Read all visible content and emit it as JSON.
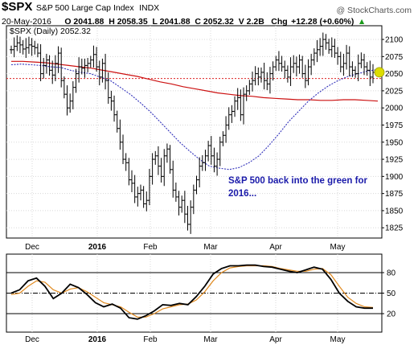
{
  "header": {
    "symbol": "$SPX",
    "name": "S&P 500 Large Cap Index",
    "exchange": "INDX",
    "date": "20-May-2016",
    "ohlc": "O 2041.88  H 2058.35  L 2041.88  C 2052.32  V 2.2B",
    "change_label": "Chg",
    "change": "+12.28 (+0.60%)",
    "change_arrow": "▲",
    "watermark": "@ StockCharts.com"
  },
  "chart_data": [
    {
      "type": "ohlc",
      "legend": "$SPX (Daily) 2052.32",
      "ylim": [
        1810,
        2120
      ],
      "yticks": [
        1825,
        1850,
        1875,
        1900,
        1925,
        1950,
        1975,
        2000,
        2025,
        2050,
        2075,
        2100
      ],
      "xticks": [
        "Dec",
        "2016",
        "Feb",
        "Mar",
        "Apr",
        "May"
      ],
      "annotation": [
        "S&P 500 back into the green for",
        "2016..."
      ],
      "reference_level": 2043,
      "colors": {
        "bars": "#000000",
        "ma50": "#3333bb",
        "ma200": "#cc1111",
        "reference": "#dd2222",
        "marker": "#dddd00"
      },
      "close": [
        2085,
        2090,
        2095,
        2092,
        2086,
        2088,
        2092,
        2090,
        2088,
        2080,
        2050,
        2062,
        2070,
        2055,
        2048,
        2065,
        2080,
        2040,
        2020,
        2000,
        2010,
        2030,
        2050,
        2060,
        2058,
        2062,
        2065,
        2070,
        2078,
        2060,
        2045,
        2065,
        2040,
        2015,
        2010,
        1990,
        1970,
        1950,
        1925,
        1920,
        1895,
        1890,
        1870,
        1875,
        1880,
        1860,
        1865,
        1900,
        1925,
        1930,
        1915,
        1900,
        1930,
        1940,
        1910,
        1880,
        1870,
        1855,
        1865,
        1845,
        1830,
        1855,
        1880,
        1895,
        1915,
        1920,
        1930,
        1945,
        1930,
        1915,
        1925,
        1950,
        1960,
        1975,
        1990,
        1995,
        2010,
        2015,
        1990,
        2020,
        2025,
        2035,
        2040,
        2050,
        2045,
        2052,
        2040,
        2035,
        2050,
        2060,
        2070,
        2065,
        2060,
        2055,
        2045,
        2060,
        2065,
        2060,
        2070,
        2050,
        2040,
        2060,
        2070,
        2080,
        2085,
        2090,
        2100,
        2095,
        2085,
        2090,
        2080,
        2075,
        2060,
        2065,
        2080,
        2060,
        2055,
        2050,
        2065,
        2070,
        2060,
        2055,
        2045,
        2052
      ],
      "ma50": [
        2063,
        2064,
        2063,
        2062,
        2060,
        2059,
        2055,
        2052,
        2050,
        2045,
        2040,
        2030,
        2020,
        2008,
        1995,
        1980,
        1965,
        1950,
        1937,
        1925,
        1915,
        1912,
        1910,
        1913,
        1920,
        1930,
        1945,
        1962,
        1980,
        1995,
        2010,
        2022,
        2032,
        2040,
        2046,
        2050,
        2054,
        2056
      ],
      "ma200": [
        2068,
        2068,
        2067,
        2066,
        2064,
        2062,
        2060,
        2058,
        2055,
        2052,
        2049,
        2046,
        2042,
        2038,
        2035,
        2031,
        2028,
        2025,
        2022,
        2020,
        2018,
        2017,
        2015,
        2014,
        2013,
        2012,
        2012,
        2011,
        2011,
        2012,
        2012,
        2011,
        2010
      ]
    },
    {
      "type": "line",
      "ylim": [
        0,
        100
      ],
      "yticks": [
        20,
        50,
        80
      ],
      "levels": [
        20,
        50,
        80
      ],
      "xticks": [
        "Dec",
        "2016",
        "Feb",
        "Mar",
        "Apr",
        "May"
      ],
      "colors": {
        "k": "#000000",
        "d": "#e08a20"
      },
      "series": [
        {
          "values": [
            50,
            55,
            68,
            72,
            60,
            42,
            50,
            63,
            58,
            48,
            36,
            30,
            34,
            28,
            14,
            12,
            17,
            24,
            33,
            32,
            35,
            33,
            45,
            60,
            78,
            86,
            90,
            90,
            91,
            91,
            89,
            88,
            85,
            82,
            80,
            84,
            88,
            85,
            70,
            50,
            38,
            30,
            28,
            28
          ]
        },
        {
          "values": [
            48,
            50,
            60,
            68,
            66,
            55,
            50,
            56,
            58,
            52,
            44,
            36,
            33,
            30,
            22,
            15,
            15,
            20,
            27,
            30,
            33,
            34,
            40,
            52,
            68,
            80,
            87,
            89,
            90,
            90,
            90,
            89,
            86,
            84,
            82,
            82,
            85,
            86,
            77,
            60,
            44,
            35,
            30,
            29
          ]
        }
      ]
    }
  ]
}
